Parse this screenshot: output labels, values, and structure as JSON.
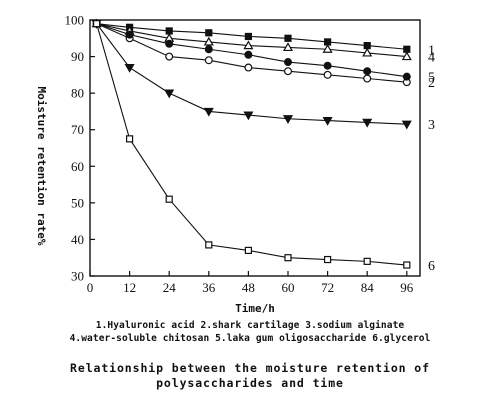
{
  "chart_data": {
    "type": "line",
    "xlabel": "Time/h",
    "ylabel": "Moisture retention rate%",
    "x": [
      2,
      12,
      24,
      36,
      48,
      60,
      72,
      84,
      96
    ],
    "xticks": [
      0,
      12,
      24,
      36,
      48,
      60,
      72,
      84,
      96
    ],
    "yticks": [
      30,
      40,
      50,
      60,
      70,
      80,
      90,
      100
    ],
    "xlim": [
      0,
      100
    ],
    "ylim": [
      30,
      100
    ],
    "grid": false,
    "series": [
      {
        "tag": "1",
        "marker": "square-filled",
        "values": [
          99,
          98,
          97,
          96.5,
          95.5,
          95,
          94,
          93,
          92
        ]
      },
      {
        "tag": "2",
        "marker": "circle-open",
        "values": [
          99,
          95,
          90,
          89,
          87,
          86,
          85,
          84,
          83
        ]
      },
      {
        "tag": "3",
        "marker": "triangle-down-filled",
        "values": [
          99,
          87,
          80,
          75,
          74,
          73,
          72.5,
          72,
          71.5
        ]
      },
      {
        "tag": "4",
        "marker": "triangle-up-open",
        "values": [
          99,
          97,
          95,
          94,
          93,
          92.5,
          92,
          91,
          90
        ]
      },
      {
        "tag": "5",
        "marker": "circle-filled",
        "values": [
          99,
          96,
          93.5,
          92,
          90.5,
          88.5,
          87.5,
          86,
          84.5
        ]
      },
      {
        "tag": "6",
        "marker": "square-open",
        "values": [
          99,
          67.5,
          51,
          38.5,
          37,
          35,
          34.5,
          34,
          33
        ]
      }
    ]
  },
  "legend": {
    "line1": "1.Hyaluronic acid 2.shark cartilage 3.sodium alginate",
    "line2": "4.water-soluble chitosan 5.laka gum oligosaccharide 6.glycerol"
  },
  "caption": {
    "line1": "Relationship between the moisture retention of",
    "line2": "polysaccharides and time"
  }
}
